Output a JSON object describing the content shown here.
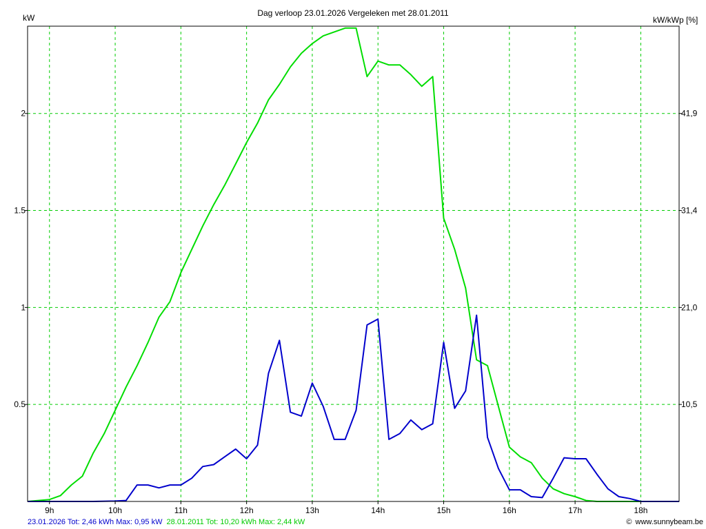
{
  "chart_data": {
    "type": "line",
    "title": "Dag  verloop 23.01.2026   Vergeleken met 28.01.2011",
    "ylabel": "kW",
    "y2label": "kW/kWp [%]",
    "x_range": [
      "8:40",
      "18:35"
    ],
    "ylim": [
      0,
      2.45
    ],
    "grid": true,
    "x_ticks": [
      {
        "time": "9:00",
        "label": "9h"
      },
      {
        "time": "10:00",
        "label": "10h"
      },
      {
        "time": "11:00",
        "label": "11h"
      },
      {
        "time": "12:00",
        "label": "12h"
      },
      {
        "time": "13:00",
        "label": "13h"
      },
      {
        "time": "14:00",
        "label": "14h"
      },
      {
        "time": "15:00",
        "label": "15h"
      },
      {
        "time": "16:00",
        "label": "16h"
      },
      {
        "time": "17:00",
        "label": "17h"
      },
      {
        "time": "18:00",
        "label": "18h"
      }
    ],
    "y_ticks": [
      {
        "value": 0.5,
        "label": "0.5"
      },
      {
        "value": 1,
        "label": "1"
      },
      {
        "value": 1.5,
        "label": "1.5"
      },
      {
        "value": 2,
        "label": "2"
      }
    ],
    "y2_ticks": [
      {
        "value": 0.5,
        "label": "10,5"
      },
      {
        "value": 1,
        "label": "21,0"
      },
      {
        "value": 1.5,
        "label": "31,4"
      },
      {
        "value": 2,
        "label": "41,9"
      }
    ],
    "series": [
      {
        "name": "23.01.2026",
        "color": "#0000cc",
        "points": [
          [
            "8:40",
            0
          ],
          [
            "9:40",
            0
          ],
          [
            "10:00",
            0.002
          ],
          [
            "10:10",
            0.005
          ],
          [
            "10:20",
            0.085
          ],
          [
            "10:30",
            0.085
          ],
          [
            "10:40",
            0.07
          ],
          [
            "10:50",
            0.085
          ],
          [
            "11:00",
            0.085
          ],
          [
            "11:10",
            0.12
          ],
          [
            "11:20",
            0.18
          ],
          [
            "11:30",
            0.19
          ],
          [
            "11:40",
            0.23
          ],
          [
            "11:50",
            0.27
          ],
          [
            "12:00",
            0.22
          ],
          [
            "12:10",
            0.29
          ],
          [
            "12:20",
            0.66
          ],
          [
            "12:30",
            0.83
          ],
          [
            "12:40",
            0.46
          ],
          [
            "12:50",
            0.44
          ],
          [
            "13:00",
            0.61
          ],
          [
            "13:10",
            0.49
          ],
          [
            "13:20",
            0.32
          ],
          [
            "13:30",
            0.32
          ],
          [
            "13:40",
            0.47
          ],
          [
            "13:50",
            0.91
          ],
          [
            "14:00",
            0.94
          ],
          [
            "14:10",
            0.32
          ],
          [
            "14:20",
            0.35
          ],
          [
            "14:30",
            0.42
          ],
          [
            "14:40",
            0.37
          ],
          [
            "14:50",
            0.4
          ],
          [
            "15:00",
            0.82
          ],
          [
            "15:10",
            0.48
          ],
          [
            "15:20",
            0.57
          ],
          [
            "15:30",
            0.96
          ],
          [
            "15:40",
            0.33
          ],
          [
            "15:50",
            0.17
          ],
          [
            "16:00",
            0.06
          ],
          [
            "16:10",
            0.06
          ],
          [
            "16:20",
            0.025
          ],
          [
            "16:30",
            0.02
          ],
          [
            "16:40",
            0.12
          ],
          [
            "16:50",
            0.225
          ],
          [
            "17:00",
            0.22
          ],
          [
            "17:10",
            0.22
          ],
          [
            "17:20",
            0.14
          ],
          [
            "17:30",
            0.065
          ],
          [
            "17:40",
            0.025
          ],
          [
            "17:50",
            0.015
          ],
          [
            "18:00",
            0
          ],
          [
            "18:10",
            0
          ],
          [
            "18:35",
            0
          ]
        ]
      },
      {
        "name": "28.01.2011",
        "color": "#00dd00",
        "points": [
          [
            "8:40",
            0
          ],
          [
            "8:50",
            0.005
          ],
          [
            "9:00",
            0.01
          ],
          [
            "9:10",
            0.03
          ],
          [
            "9:20",
            0.085
          ],
          [
            "9:30",
            0.13
          ],
          [
            "9:40",
            0.25
          ],
          [
            "9:50",
            0.35
          ],
          [
            "10:00",
            0.47
          ],
          [
            "10:10",
            0.59
          ],
          [
            "10:20",
            0.7
          ],
          [
            "10:30",
            0.82
          ],
          [
            "10:40",
            0.95
          ],
          [
            "10:50",
            1.03
          ],
          [
            "11:00",
            1.18
          ],
          [
            "11:10",
            1.3
          ],
          [
            "11:20",
            1.42
          ],
          [
            "11:30",
            1.53
          ],
          [
            "11:40",
            1.63
          ],
          [
            "11:50",
            1.74
          ],
          [
            "12:00",
            1.85
          ],
          [
            "12:10",
            1.95
          ],
          [
            "12:20",
            2.07
          ],
          [
            "12:30",
            2.15
          ],
          [
            "12:40",
            2.24
          ],
          [
            "12:50",
            2.31
          ],
          [
            "13:00",
            2.36
          ],
          [
            "13:10",
            2.4
          ],
          [
            "13:20",
            2.42
          ],
          [
            "13:30",
            2.44
          ],
          [
            "13:40",
            2.44
          ],
          [
            "13:50",
            2.19
          ],
          [
            "14:00",
            2.27
          ],
          [
            "14:10",
            2.25
          ],
          [
            "14:20",
            2.25
          ],
          [
            "14:30",
            2.2
          ],
          [
            "14:40",
            2.14
          ],
          [
            "14:50",
            2.19
          ],
          [
            "15:00",
            1.46
          ],
          [
            "15:10",
            1.3
          ],
          [
            "15:20",
            1.1
          ],
          [
            "15:30",
            0.73
          ],
          [
            "15:40",
            0.7
          ],
          [
            "15:50",
            0.49
          ],
          [
            "16:00",
            0.28
          ],
          [
            "16:10",
            0.23
          ],
          [
            "16:20",
            0.2
          ],
          [
            "16:30",
            0.12
          ],
          [
            "16:40",
            0.065
          ],
          [
            "16:50",
            0.04
          ],
          [
            "17:00",
            0.025
          ],
          [
            "17:10",
            0.005
          ],
          [
            "17:20",
            0
          ],
          [
            "18:35",
            0
          ]
        ]
      }
    ]
  },
  "footer": {
    "left_series1": "23.01.2026 Tot: 2,46 kWh Max: 0,95 kW",
    "left_series2": "28.01.2011 Tot: 10,20 kWh Max: 2,44 kW",
    "right_credit": "www.sunnybeam.be",
    "credit_symbol": "©"
  },
  "colors": {
    "grid": "#00cc00",
    "axis": "#000000",
    "series1": "#0000cc",
    "series2": "#00dd00"
  }
}
